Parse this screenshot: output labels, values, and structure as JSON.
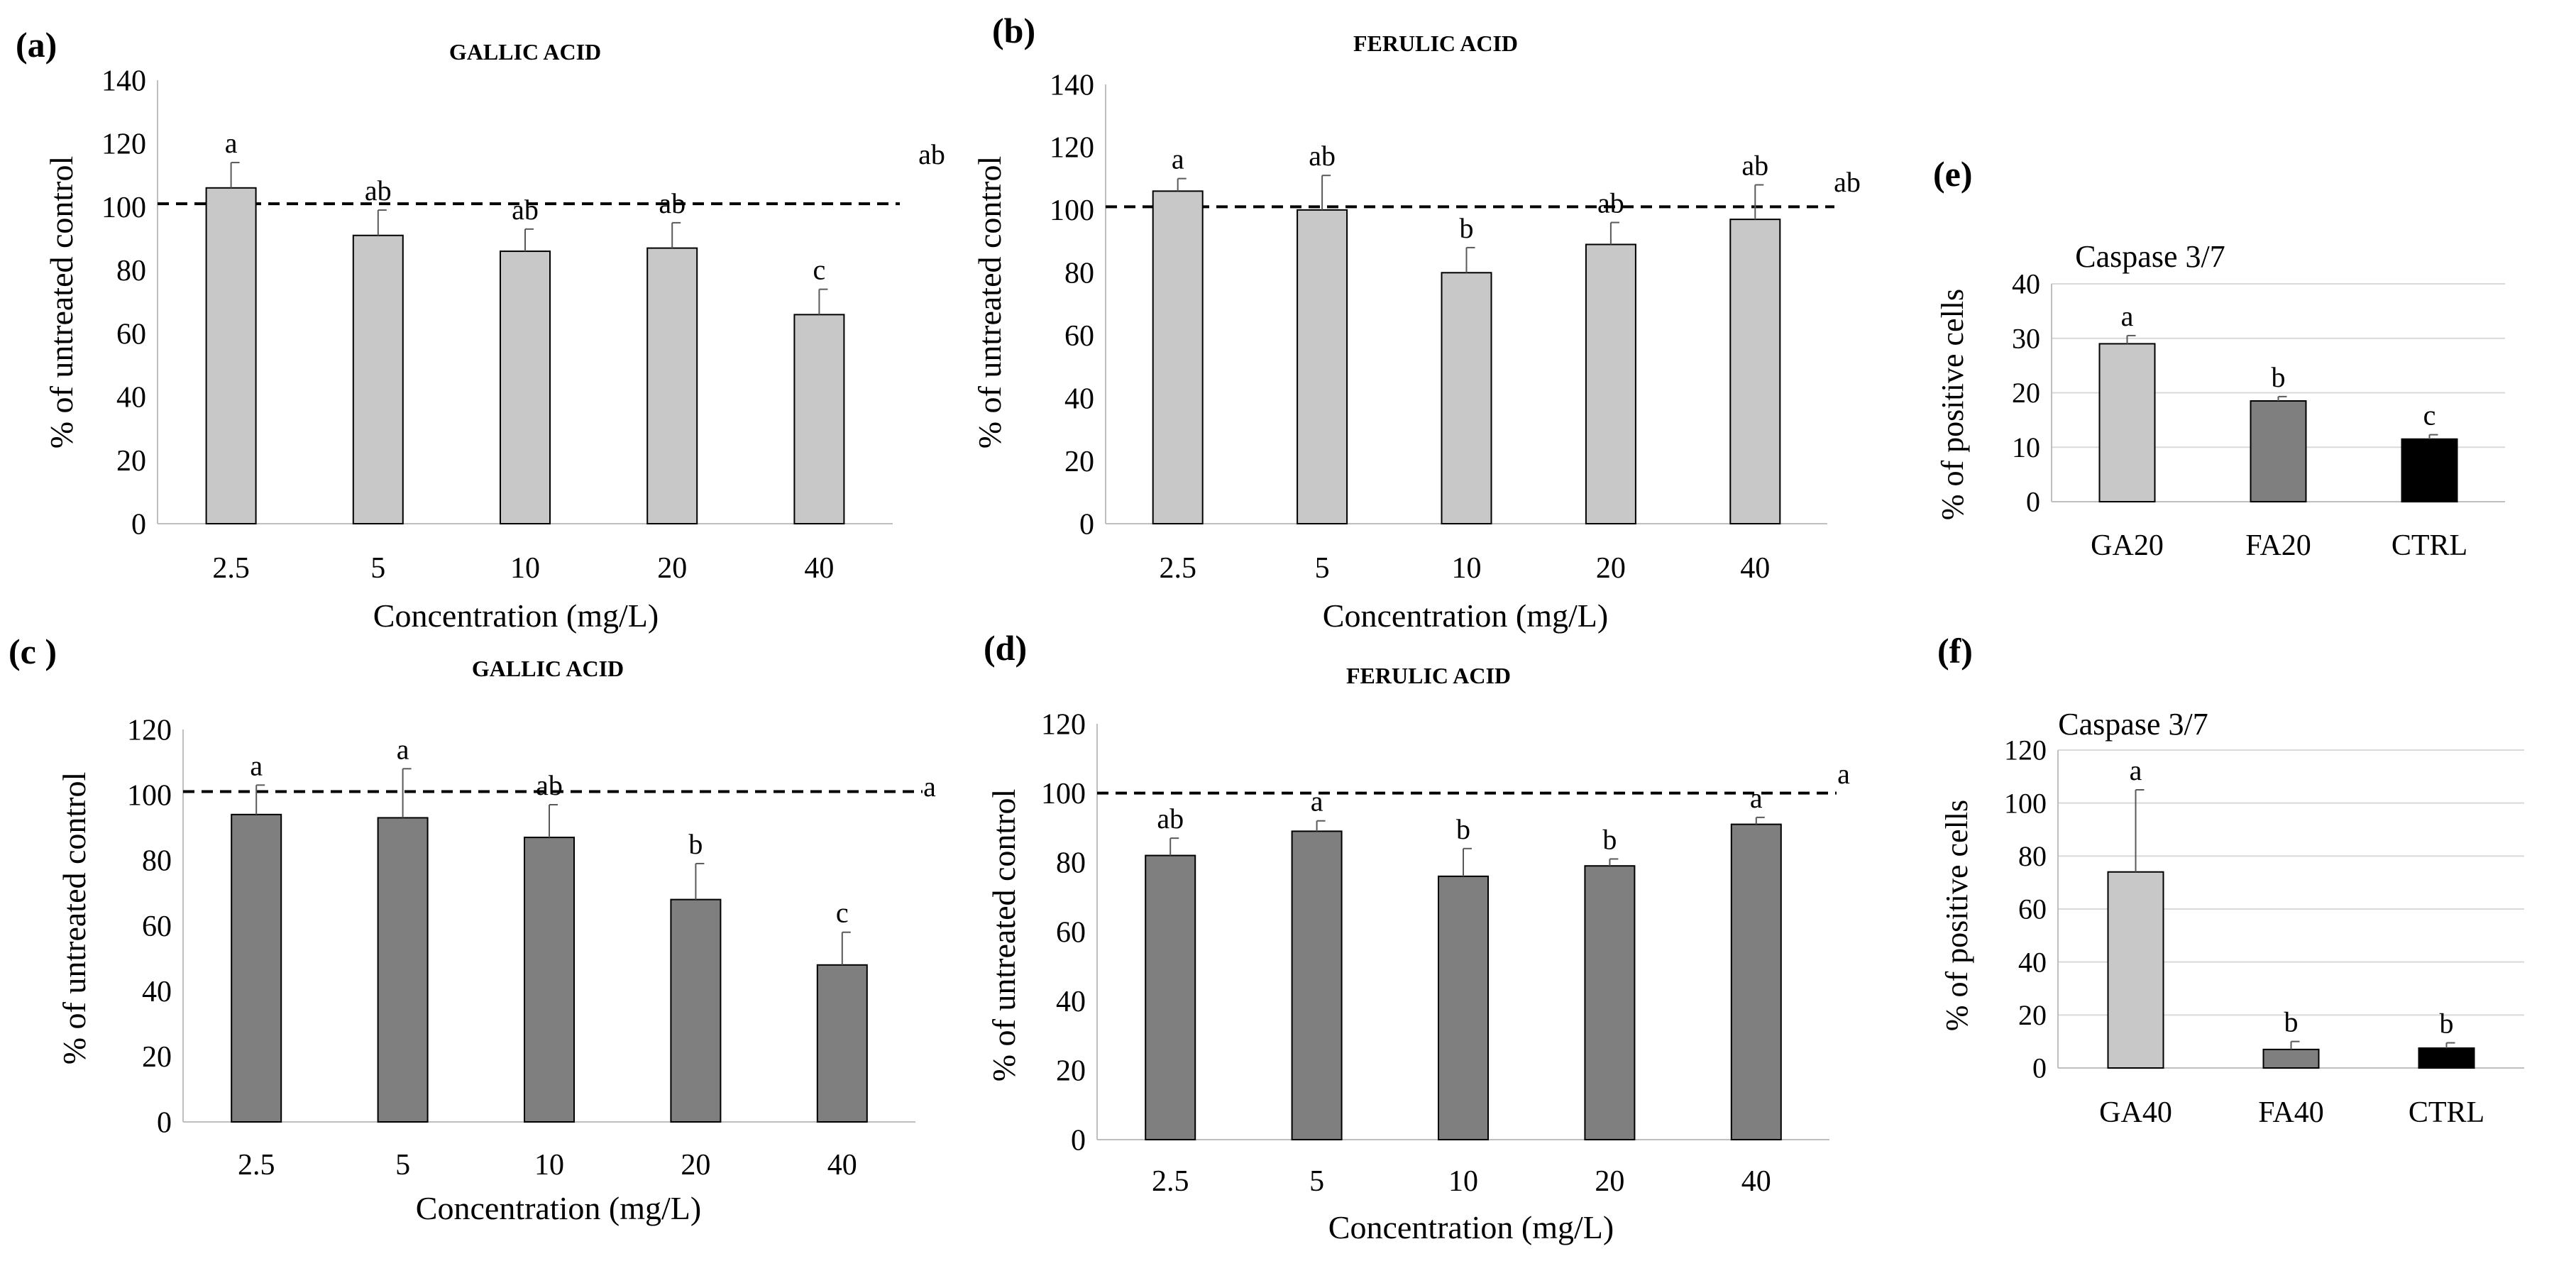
{
  "colors": {
    "light": "#c8c8c8",
    "mid": "#7f7f7f",
    "dark": "#000000",
    "axis": "#bfbfbf",
    "grid": "#d9d9d9",
    "errbar": "#595959"
  },
  "chart_data": [
    {
      "id": "a",
      "panel_label": "(a)",
      "type": "bar",
      "title": "GALLIC ACID",
      "xlabel": "Concentration (mg/L)",
      "ylabel": "% of untreated control",
      "categories": [
        "2.5",
        "5",
        "10",
        "20",
        "40"
      ],
      "values": [
        106,
        91,
        86,
        87,
        66
      ],
      "errors": [
        8,
        8,
        7,
        8,
        8
      ],
      "letters": [
        "a",
        "ab",
        "ab",
        "ab",
        "c"
      ],
      "bar_colors": [
        "light",
        "light",
        "light",
        "light",
        "light"
      ],
      "ylim": [
        0,
        140
      ],
      "ytick_step": 20,
      "reference_line": 101,
      "reference_label": "ab",
      "grid": false,
      "legend": "none"
    },
    {
      "id": "b",
      "panel_label": "(b)",
      "type": "bar",
      "title": "FERULIC ACID",
      "xlabel": "Concentration (mg/L)",
      "ylabel": "% of untreated control",
      "categories": [
        "2.5",
        "5",
        "10",
        "20",
        "40"
      ],
      "values": [
        106,
        100,
        80,
        89,
        97
      ],
      "errors": [
        4,
        11,
        8,
        7,
        11
      ],
      "letters": [
        "a",
        "ab",
        "b",
        "ab",
        "ab"
      ],
      "bar_colors": [
        "light",
        "light",
        "light",
        "light",
        "light"
      ],
      "ylim": [
        0,
        140
      ],
      "ytick_step": 20,
      "reference_line": 101,
      "reference_label": "ab",
      "grid": false,
      "legend": "none"
    },
    {
      "id": "c",
      "panel_label": "(c )",
      "type": "bar",
      "title": "GALLIC ACID",
      "xlabel": "Concentration (mg/L)",
      "ylabel": "% of untreated control",
      "categories": [
        "2.5",
        "5",
        "10",
        "20",
        "40"
      ],
      "values": [
        94,
        93,
        87,
        68,
        48
      ],
      "errors": [
        9,
        15,
        10,
        11,
        10
      ],
      "letters": [
        "a",
        "a",
        "ab",
        "b",
        "c"
      ],
      "bar_colors": [
        "mid",
        "mid",
        "mid",
        "mid",
        "mid"
      ],
      "ylim": [
        0,
        120
      ],
      "ytick_step": 20,
      "reference_line": 101,
      "reference_label": "a",
      "grid": false,
      "legend": "none"
    },
    {
      "id": "d",
      "panel_label": "(d)",
      "type": "bar",
      "title": "FERULIC ACID",
      "xlabel": "Concentration (mg/L)",
      "ylabel": "% of untreated control",
      "categories": [
        "2.5",
        "5",
        "10",
        "20",
        "40"
      ],
      "values": [
        82,
        89,
        76,
        79,
        91
      ],
      "errors": [
        5,
        3,
        8,
        2,
        2
      ],
      "letters": [
        "ab",
        "a",
        "b",
        "b",
        "a"
      ],
      "bar_colors": [
        "mid",
        "mid",
        "mid",
        "mid",
        "mid"
      ],
      "ylim": [
        0,
        120
      ],
      "ytick_step": 20,
      "reference_line": 100,
      "reference_label": "a",
      "grid": false,
      "legend": "none"
    },
    {
      "id": "e",
      "panel_label": "(e)",
      "type": "bar",
      "title": "Caspase 3/7",
      "xlabel": "",
      "ylabel": "% of positive cells",
      "categories": [
        "GA20",
        "FA20",
        "CTRL"
      ],
      "values": [
        29,
        18.5,
        11.5
      ],
      "errors": [
        1.5,
        0.8,
        0.8
      ],
      "letters": [
        "a",
        "b",
        "c"
      ],
      "bar_colors": [
        "light",
        "mid",
        "dark"
      ],
      "ylim": [
        0,
        40
      ],
      "ytick_step": 10,
      "reference_line": null,
      "reference_label": "",
      "grid": true,
      "legend": "none"
    },
    {
      "id": "f",
      "panel_label": "(f)",
      "type": "bar",
      "title": "Caspase 3/7",
      "xlabel": "",
      "ylabel": "% of positive cells",
      "categories": [
        "GA40",
        "FA40",
        "CTRL"
      ],
      "values": [
        74,
        7,
        7.5
      ],
      "errors": [
        31,
        3,
        2
      ],
      "letters": [
        "a",
        "b",
        "b"
      ],
      "bar_colors": [
        "light",
        "mid",
        "dark"
      ],
      "ylim": [
        0,
        120
      ],
      "ytick_step": 20,
      "reference_line": null,
      "reference_label": "",
      "grid": true,
      "legend": "none"
    }
  ]
}
